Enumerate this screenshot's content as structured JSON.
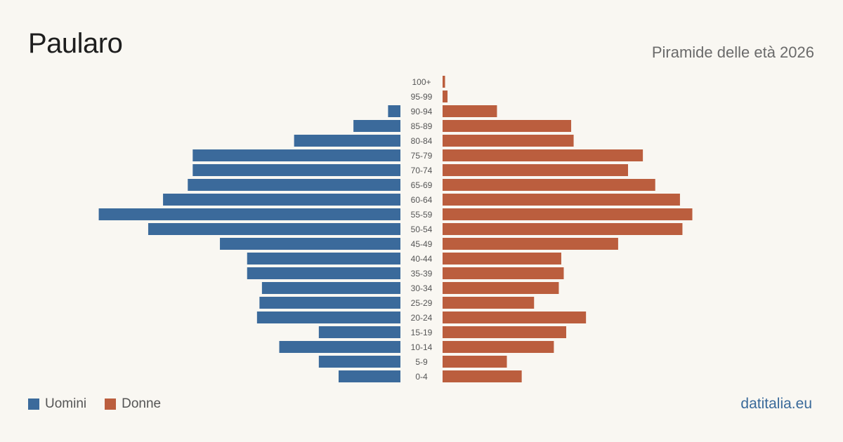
{
  "title": "Paularo",
  "subtitle": "Piramide delle età 2026",
  "brand": "datitalia.eu",
  "colors": {
    "male": "#3b6a9b",
    "female": "#bb5e3e"
  },
  "legend": {
    "male_label": "Uomini",
    "female_label": "Donne"
  },
  "chart_data": {
    "type": "bar",
    "orientation": "horizontal",
    "subtype": "population-pyramid",
    "categories": [
      "100+",
      "95-99",
      "90-94",
      "85-89",
      "80-84",
      "75-79",
      "70-74",
      "65-69",
      "60-64",
      "55-59",
      "50-54",
      "45-49",
      "40-44",
      "35-39",
      "30-34",
      "25-29",
      "20-24",
      "15-19",
      "10-14",
      "5-9",
      "0-4"
    ],
    "series": [
      {
        "name": "Uomini",
        "values": [
          0,
          0,
          5,
          19,
          43,
          84,
          84,
          86,
          96,
          122,
          102,
          73,
          62,
          62,
          56,
          57,
          58,
          33,
          49,
          33,
          25
        ]
      },
      {
        "name": "Donne",
        "values": [
          1,
          2,
          22,
          52,
          53,
          81,
          75,
          86,
          96,
          101,
          97,
          71,
          48,
          49,
          47,
          37,
          58,
          50,
          45,
          26,
          32
        ]
      }
    ]
  }
}
